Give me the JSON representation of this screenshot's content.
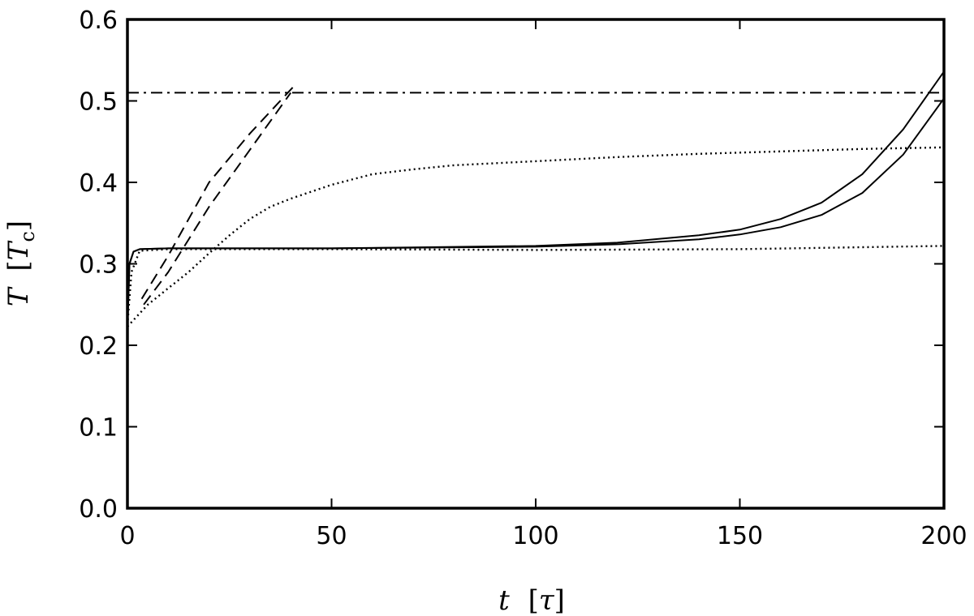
{
  "chart_data": {
    "type": "line",
    "title": "",
    "xlabel": {
      "symbol": "t",
      "unit_open": "[",
      "unit": "τ",
      "unit_close": "]"
    },
    "ylabel": {
      "symbol": "T",
      "unit_open": "[",
      "unit": "T",
      "unit_sub": "c",
      "unit_close": "]"
    },
    "xlim": [
      0,
      200
    ],
    "ylim": [
      0,
      0.6
    ],
    "xticks": [
      0,
      50,
      100,
      150,
      200
    ],
    "xtick_labels": [
      "0",
      "50",
      "100",
      "150",
      "200"
    ],
    "yticks": [
      0,
      0.1,
      0.2,
      0.3,
      0.4,
      0.5,
      0.6
    ],
    "ytick_labels": [
      "0.0",
      "0.1",
      "0.2",
      "0.3",
      "0.4",
      "0.5",
      "0.6"
    ],
    "grid": false,
    "series": [
      {
        "name": "dash-dot-horizontal",
        "style": "dashdot",
        "x": [
          0,
          200
        ],
        "y": [
          0.51,
          0.51
        ]
      },
      {
        "name": "dashed-1",
        "style": "dashed",
        "x": [
          3.5,
          10,
          20,
          30,
          41.5
        ],
        "y": [
          0.257,
          0.31,
          0.4,
          0.46,
          0.522
        ]
      },
      {
        "name": "dashed-2",
        "style": "dashed",
        "x": [
          4,
          10,
          20,
          30,
          40
        ],
        "y": [
          0.25,
          0.29,
          0.37,
          0.44,
          0.51
        ]
      },
      {
        "name": "dotted-rising",
        "style": "dotted",
        "x": [
          0,
          5,
          10,
          15,
          20,
          25,
          30,
          35,
          40,
          50,
          60,
          70,
          80,
          100,
          120,
          140,
          160,
          180,
          200
        ],
        "y": [
          0.223,
          0.25,
          0.27,
          0.29,
          0.313,
          0.335,
          0.355,
          0.37,
          0.38,
          0.397,
          0.41,
          0.416,
          0.421,
          0.426,
          0.431,
          0.435,
          0.438,
          0.441,
          0.443
        ]
      },
      {
        "name": "dotted-flat",
        "style": "dotted",
        "x": [
          0,
          1,
          3,
          10,
          50,
          100,
          150,
          200
        ],
        "y": [
          0.225,
          0.29,
          0.316,
          0.318,
          0.318,
          0.317,
          0.318,
          0.322
        ]
      },
      {
        "name": "solid-1",
        "style": "solid",
        "x": [
          0,
          0.5,
          1.5,
          3,
          10,
          50,
          100,
          120,
          140,
          150,
          160,
          170,
          180,
          190,
          200
        ],
        "y": [
          0.22,
          0.3,
          0.315,
          0.318,
          0.319,
          0.319,
          0.322,
          0.326,
          0.335,
          0.342,
          0.355,
          0.375,
          0.41,
          0.465,
          0.536
        ]
      },
      {
        "name": "solid-2",
        "style": "solid",
        "x": [
          0,
          0.5,
          1.5,
          3,
          10,
          50,
          100,
          120,
          140,
          150,
          160,
          170,
          180,
          190,
          200
        ],
        "y": [
          0.22,
          0.3,
          0.315,
          0.318,
          0.319,
          0.319,
          0.321,
          0.324,
          0.33,
          0.336,
          0.345,
          0.36,
          0.387,
          0.434,
          0.503
        ]
      }
    ]
  }
}
